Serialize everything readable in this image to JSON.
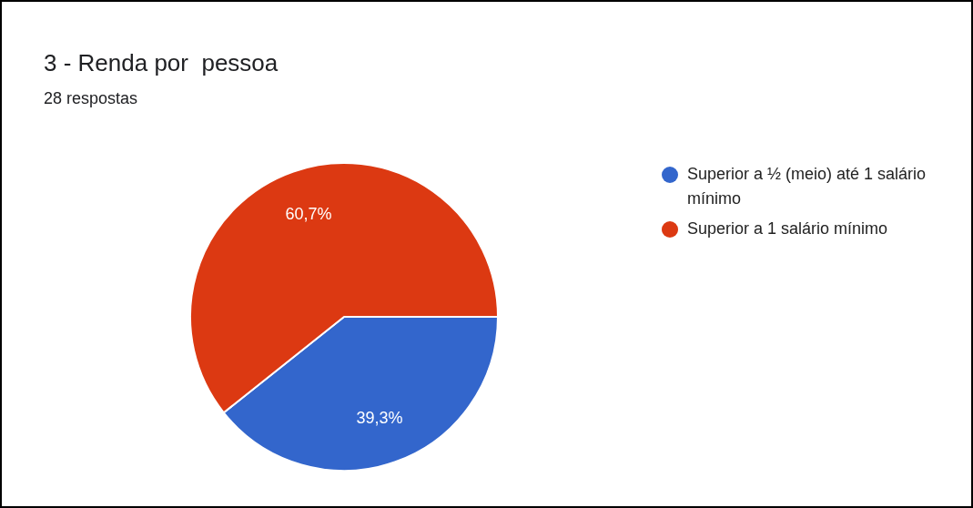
{
  "chart_data": {
    "type": "pie",
    "title": "3 - Renda por  pessoa",
    "subtitle": "28 respostas",
    "categories": [
      "Superior a ½ (meio) até 1 salário mínimo",
      "Superior a 1 salário mínimo"
    ],
    "values": [
      39.3,
      60.7
    ],
    "colors": [
      "#3366cc",
      "#dc3912"
    ],
    "value_labels": [
      "39,3%",
      "60,7%"
    ],
    "legend": "top right"
  }
}
